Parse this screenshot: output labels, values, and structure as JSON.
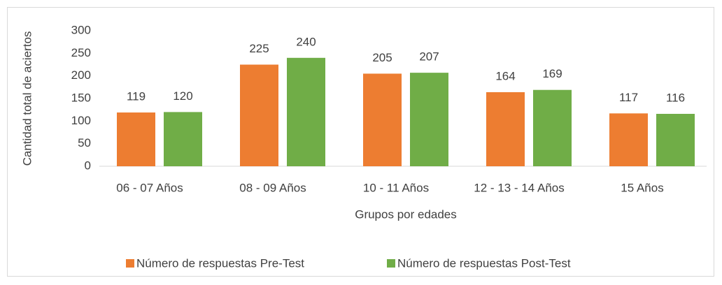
{
  "chart_data": {
    "type": "bar",
    "categories": [
      "06 - 07 Años",
      "08 - 09 Años",
      "10 - 11 Años",
      "12 - 13 - 14 Años",
      "15 Años"
    ],
    "series": [
      {
        "name": "Número de respuestas Pre-Test",
        "color": "#ed7d31",
        "values": [
          119,
          225,
          205,
          164,
          117
        ]
      },
      {
        "name": "Número de respuestas Post-Test",
        "color": "#70ad47",
        "values": [
          120,
          240,
          207,
          169,
          116
        ]
      }
    ],
    "xlabel": "Grupos por edades",
    "ylabel": "Cantidad total de aciertos",
    "ylim": [
      0,
      300
    ],
    "yticks": [
      0,
      50,
      100,
      150,
      200,
      250,
      300
    ],
    "grid": false,
    "legend": "bottom"
  }
}
